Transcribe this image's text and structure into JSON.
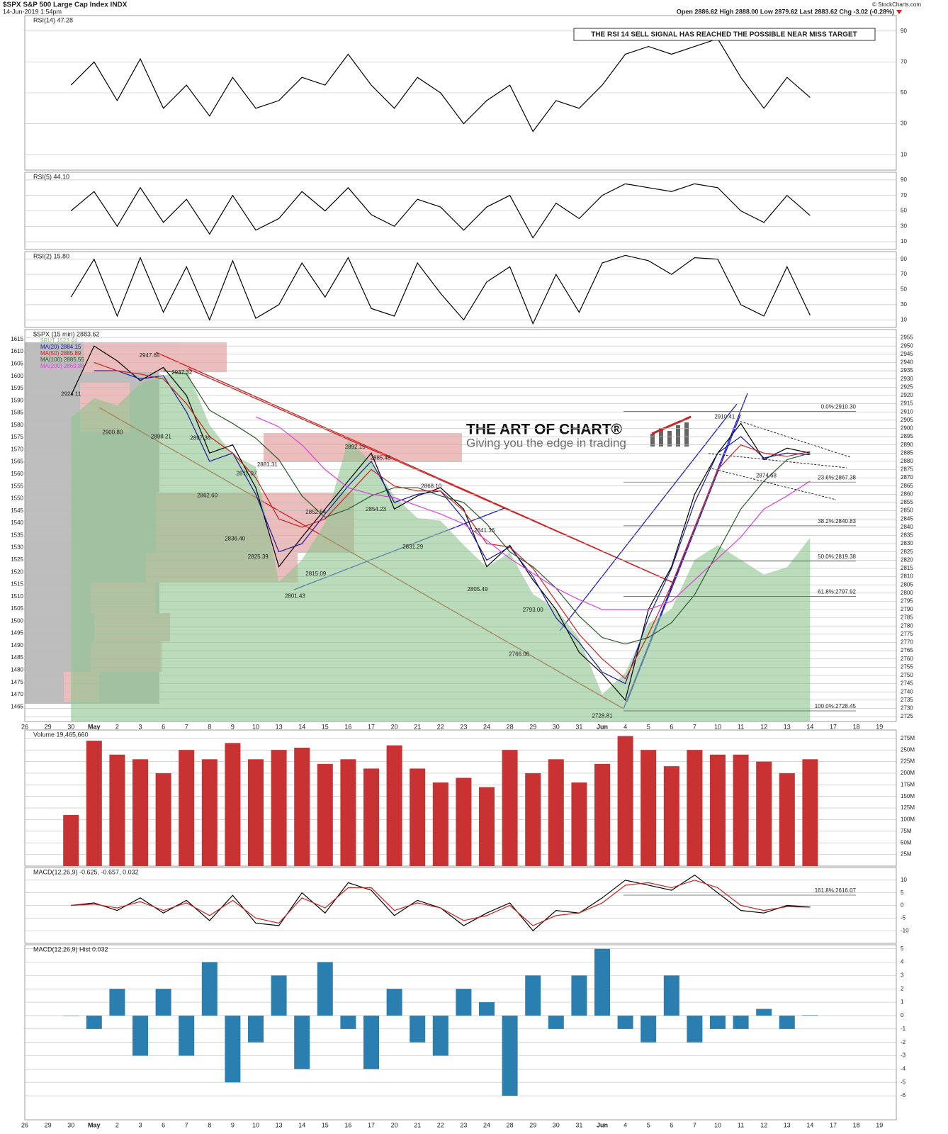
{
  "header": {
    "symbol": "$SPX S&P 500 Large Cap Index INDX",
    "date": "14-Jun-2019 1:54pm",
    "quote": "Open 2886.62 High 2888.00 Low 2879.62 Last 2883.62 Chg -3.02 (-0.28%)",
    "source": "© StockCharts.com"
  },
  "chart_data": [
    {
      "type": "line",
      "title": "RSI(14) 47.28",
      "color": "#000000",
      "ylim": [
        0,
        100
      ],
      "yticks": [
        90,
        70,
        50,
        30,
        10
      ],
      "annotation": "THE RSI 14 SELL SIGNAL HAS REACHED THE POSSIBLE NEAR MISS TARGET",
      "values": [
        null,
        null,
        55,
        70,
        45,
        72,
        40,
        55,
        35,
        60,
        40,
        45,
        60,
        55,
        75,
        55,
        40,
        60,
        50,
        30,
        45,
        55,
        25,
        45,
        40,
        55,
        75,
        80,
        75,
        80,
        85,
        60,
        40,
        60,
        47,
        null,
        null,
        null
      ]
    },
    {
      "type": "line",
      "title": "RSI(5) 44.10",
      "color": "#000000",
      "ylim": [
        0,
        100
      ],
      "yticks": [
        90,
        70,
        50,
        30,
        10
      ],
      "values": [
        null,
        null,
        50,
        75,
        30,
        80,
        35,
        65,
        20,
        70,
        25,
        40,
        75,
        50,
        80,
        45,
        30,
        65,
        55,
        25,
        55,
        70,
        15,
        60,
        40,
        70,
        85,
        80,
        75,
        85,
        80,
        50,
        35,
        70,
        44,
        null,
        null,
        null
      ]
    },
    {
      "type": "line",
      "title": "RSI(2) 15.80",
      "color": "#000000",
      "ylim": [
        0,
        100
      ],
      "yticks": [
        90,
        70,
        50,
        30,
        10
      ],
      "values": [
        null,
        null,
        40,
        90,
        15,
        92,
        20,
        80,
        10,
        88,
        12,
        30,
        85,
        40,
        92,
        25,
        15,
        85,
        45,
        10,
        60,
        80,
        5,
        70,
        20,
        85,
        95,
        88,
        70,
        92,
        90,
        30,
        15,
        80,
        16,
        null,
        null,
        null
      ]
    },
    {
      "type": "line",
      "title": "$SPX (15 min) 2883.62",
      "categories": [
        "26",
        "29",
        "30",
        "May",
        "2",
        "3",
        "6",
        "7",
        "8",
        "9",
        "10",
        "13",
        "14",
        "15",
        "16",
        "17",
        "20",
        "21",
        "22",
        "23",
        "24",
        "28",
        "29",
        "30",
        "31",
        "Jun",
        "4",
        "5",
        "6",
        "7",
        "10",
        "11",
        "12",
        "13",
        "14",
        "17",
        "18",
        "19"
      ],
      "ylim": [
        2722,
        2960
      ],
      "yticks": [
        2955,
        2950,
        2945,
        2940,
        2935,
        2930,
        2925,
        2920,
        2915,
        2910,
        2905,
        2900,
        2895,
        2890,
        2885,
        2880,
        2875,
        2870,
        2865,
        2860,
        2855,
        2850,
        2845,
        2840,
        2835,
        2830,
        2825,
        2820,
        2815,
        2810,
        2805,
        2800,
        2795,
        2790,
        2785,
        2780,
        2775,
        2770,
        2765,
        2760,
        2755,
        2750,
        2745,
        2740,
        2735,
        2730,
        2725
      ],
      "y2lim": [
        1459,
        1619
      ],
      "y2ticks": [
        1615,
        1610,
        1605,
        1600,
        1595,
        1590,
        1585,
        1580,
        1575,
        1570,
        1565,
        1560,
        1555,
        1550,
        1545,
        1540,
        1535,
        1530,
        1525,
        1520,
        1515,
        1510,
        1505,
        1500,
        1495,
        1490,
        1485,
        1480,
        1475,
        1470,
        1465
      ],
      "series": [
        {
          "name": "$RUT 1523.44",
          "color": "#8cc48c",
          "axis": "y2",
          "area": true,
          "values": [
            null,
            null,
            1583,
            1591,
            1588,
            1597,
            1600,
            1603,
            1580,
            1568,
            1563,
            1516,
            1525,
            1540,
            1574,
            1565,
            1551,
            1542,
            1541,
            1531,
            1522,
            1528,
            1511,
            1505,
            1493,
            1470,
            1479,
            1499,
            1505,
            1525,
            1531,
            1525,
            1519,
            1522,
            1534,
            null,
            null,
            null
          ]
        },
        {
          "color": "#000000",
          "values": [
            null,
            null,
            2920,
            2950,
            2941,
            2929,
            2937,
            2920,
            2885,
            2890,
            2864,
            2816,
            2834,
            2851,
            2868,
            2885,
            2851,
            2859,
            2864,
            2851,
            2816,
            2829,
            2808,
            2790,
            2764,
            2751,
            2735,
            2790,
            2816,
            2860,
            2885,
            2903,
            2881,
            2888,
            2885,
            null,
            null,
            null
          ]
        },
        {
          "name": "MA(20) 2884.15",
          "color": "#1a1aa0",
          "values": [
            null,
            null,
            null,
            2935,
            2935,
            2930,
            2932,
            2910,
            2880,
            2885,
            2860,
            2825,
            2830,
            2848,
            2865,
            2880,
            2855,
            2860,
            2862,
            2845,
            2820,
            2828,
            2810,
            2785,
            2770,
            2752,
            2745,
            2785,
            2815,
            2855,
            2885,
            2895,
            2882,
            2885,
            2884,
            null,
            null,
            null
          ]
        },
        {
          "name": "MA(50) 2885.89",
          "color": "#d02020",
          "values": [
            null,
            null,
            null,
            2940,
            2935,
            2933,
            2930,
            2915,
            2895,
            2885,
            2870,
            2845,
            2840,
            2845,
            2860,
            2875,
            2865,
            2862,
            2862,
            2850,
            2830,
            2828,
            2815,
            2795,
            2775,
            2760,
            2748,
            2775,
            2805,
            2840,
            2875,
            2890,
            2885,
            2883,
            2886,
            null,
            null,
            null
          ]
        },
        {
          "name": "MA(100) 2885.55",
          "color": "#2a5a2a",
          "values": [
            null,
            null,
            null,
            null,
            null,
            null,
            2935,
            2933,
            2911,
            2903,
            2894,
            2881,
            2859,
            2846,
            2851,
            2859,
            2864,
            2864,
            2859,
            2855,
            2842,
            2825,
            2816,
            2803,
            2786,
            2773,
            2769,
            2773,
            2782,
            2799,
            2825,
            2851,
            2868,
            2881,
            2885,
            null,
            null,
            null
          ]
        },
        {
          "name": "MA(200) 2869.88",
          "color": "#e040e0",
          "values": [
            null,
            null,
            null,
            null,
            null,
            null,
            null,
            null,
            null,
            null,
            2907,
            2901,
            2890,
            2875,
            2864,
            2860,
            2858,
            2853,
            2848,
            2842,
            2832,
            2821,
            2812,
            2803,
            2796,
            2790,
            2790,
            2790,
            2795,
            2808,
            2821,
            2834,
            2851,
            2859,
            2868,
            null,
            null,
            null
          ]
        }
      ],
      "annotations": [
        {
          "text": "2924.11",
          "at": 2.0,
          "value": 2924.11
        },
        {
          "text": "2947.65",
          "at": 5.4,
          "value": 2947.65
        },
        {
          "text": "2937.32",
          "at": 6.8,
          "value": 2937.32
        },
        {
          "text": "2900.80",
          "at": 3.8,
          "value": 2900.8
        },
        {
          "text": "2898.21",
          "at": 5.9,
          "value": 2898.21
        },
        {
          "text": "2897.36",
          "at": 7.6,
          "value": 2897.36
        },
        {
          "text": "2862.60",
          "at": 7.9,
          "value": 2862.6
        },
        {
          "text": "2881.31",
          "at": 10.5,
          "value": 2881.31
        },
        {
          "text": "2875.97",
          "at": 9.6,
          "value": 2875.97
        },
        {
          "text": "2836.40",
          "at": 9.1,
          "value": 2836.4
        },
        {
          "text": "2825.39",
          "at": 10.1,
          "value": 2825.39
        },
        {
          "text": "2852.54",
          "at": 12.6,
          "value": 2852.54
        },
        {
          "text": "2801.43",
          "at": 11.7,
          "value": 2801.43
        },
        {
          "text": "2815.09",
          "at": 12.6,
          "value": 2815.09
        },
        {
          "text": "2892.15",
          "at": 14.3,
          "value": 2892.15
        },
        {
          "text": "2885.48",
          "at": 15.4,
          "value": 2885.48
        },
        {
          "text": "2854.23",
          "at": 15.2,
          "value": 2854.23
        },
        {
          "text": "2868.10",
          "at": 17.6,
          "value": 2868.1
        },
        {
          "text": "2831.29",
          "at": 16.8,
          "value": 2831.29
        },
        {
          "text": "2841.36",
          "at": 19.9,
          "value": 2841.36
        },
        {
          "text": "2805.49",
          "at": 19.6,
          "value": 2805.49
        },
        {
          "text": "2793.00",
          "at": 22.0,
          "value": 2793.0
        },
        {
          "text": "2766.06",
          "at": 21.4,
          "value": 2766.06
        },
        {
          "text": "2728.81",
          "at": 25.0,
          "value": 2728.81
        },
        {
          "text": "2910.41",
          "at": 30.3,
          "value": 2910.41
        },
        {
          "text": "2874.68",
          "at": 32.1,
          "value": 2874.68
        }
      ],
      "fib_levels": [
        {
          "label": "0.0%:2910.30",
          "value": 2910.3
        },
        {
          "label": "23.6%:2867.38",
          "value": 2867.38
        },
        {
          "label": "38.2%:2840.83",
          "value": 2840.83
        },
        {
          "label": "50.0%:2819.38",
          "value": 2819.38
        },
        {
          "label": "61.8%:2797.92",
          "value": 2797.92
        },
        {
          "label": "100.0%:2728.45",
          "value": 2728.45
        }
      ],
      "logo": {
        "title": "THE ART OF CHART®",
        "subtitle": "Giving you the edge in trading"
      }
    },
    {
      "type": "bar",
      "title": "Volume 19,465,660",
      "color": "#c83232",
      "ylim": [
        0,
        293000000
      ],
      "yticks": [
        {
          "value": 275000000,
          "label": "275M"
        },
        {
          "value": 250000000,
          "label": "250M"
        },
        {
          "value": 225000000,
          "label": "225M"
        },
        {
          "value": 200000000,
          "label": "200M"
        },
        {
          "value": 175000000,
          "label": "175M"
        },
        {
          "value": 150000000,
          "label": "150M"
        },
        {
          "value": 125000000,
          "label": "125M"
        },
        {
          "value": 100000000,
          "label": "100M"
        },
        {
          "value": 75000000,
          "label": "75M"
        },
        {
          "value": 50000000,
          "label": "50M"
        },
        {
          "value": 25000000,
          "label": "25M"
        }
      ],
      "values": [
        null,
        null,
        110000000,
        270000000,
        240000000,
        230000000,
        200000000,
        250000000,
        230000000,
        265000000,
        230000000,
        250000000,
        255000000,
        220000000,
        230000000,
        210000000,
        260000000,
        210000000,
        180000000,
        190000000,
        170000000,
        250000000,
        200000000,
        230000000,
        180000000,
        220000000,
        280000000,
        250000000,
        215000000,
        250000000,
        240000000,
        240000000,
        225000000,
        200000000,
        230000000,
        null,
        null,
        null
      ]
    },
    {
      "type": "line",
      "title": "MACD(12,26,9) -0.625, -0.657, 0.032",
      "ylim": [
        -15,
        15
      ],
      "yticks": [
        10,
        5,
        0,
        -5,
        -10
      ],
      "annotation": "161.8%:2616.07",
      "series": [
        {
          "color": "#000000",
          "values": [
            null,
            null,
            0,
            1,
            -2,
            3,
            -3,
            2,
            -6,
            4,
            -7,
            -8,
            5,
            -3,
            9,
            6,
            -4,
            2,
            -1,
            -8,
            -3,
            1,
            -10,
            -2,
            -3,
            3,
            10,
            8,
            6,
            12,
            5,
            -2,
            -3,
            0,
            -0.6,
            null,
            null,
            null
          ]
        },
        {
          "color": "#d02020",
          "values": [
            null,
            null,
            0,
            0.5,
            -1,
            1.5,
            -2,
            1,
            -4,
            2,
            -5,
            -7,
            3,
            -1,
            7,
            7,
            -2,
            1,
            -1,
            -6,
            -4,
            0,
            -8,
            -4,
            -3,
            1,
            8,
            9,
            7,
            10,
            7,
            0,
            -2,
            -0.5,
            -0.7,
            null,
            null,
            null
          ]
        }
      ]
    },
    {
      "type": "bar",
      "title": "MACD(12,26,9) Hist 0.032",
      "color": "#2a7fb0",
      "ylim": [
        -7.8,
        5.3
      ],
      "yticks": [
        5,
        4,
        3,
        2,
        1,
        0,
        -1,
        -2,
        -3,
        -4,
        -5,
        -6
      ],
      "categories": [
        "26",
        "29",
        "30",
        "May",
        "2",
        "3",
        "6",
        "7",
        "8",
        "9",
        "10",
        "13",
        "14",
        "15",
        "16",
        "17",
        "20",
        "21",
        "22",
        "23",
        "24",
        "28",
        "29",
        "30",
        "31",
        "Jun",
        "4",
        "5",
        "6",
        "7",
        "10",
        "11",
        "12",
        "13",
        "14",
        "17",
        "18",
        "19"
      ],
      "values": [
        null,
        null,
        0,
        -1,
        2,
        -3,
        2,
        -3,
        4,
        -5,
        -2,
        3,
        -4,
        4,
        -1,
        -4,
        2,
        -2,
        -3,
        2,
        1,
        -6,
        3,
        -1,
        3,
        5,
        -1,
        -2,
        3,
        -2,
        -1,
        -1,
        0.5,
        -1,
        0.03,
        null,
        null,
        null
      ]
    }
  ]
}
